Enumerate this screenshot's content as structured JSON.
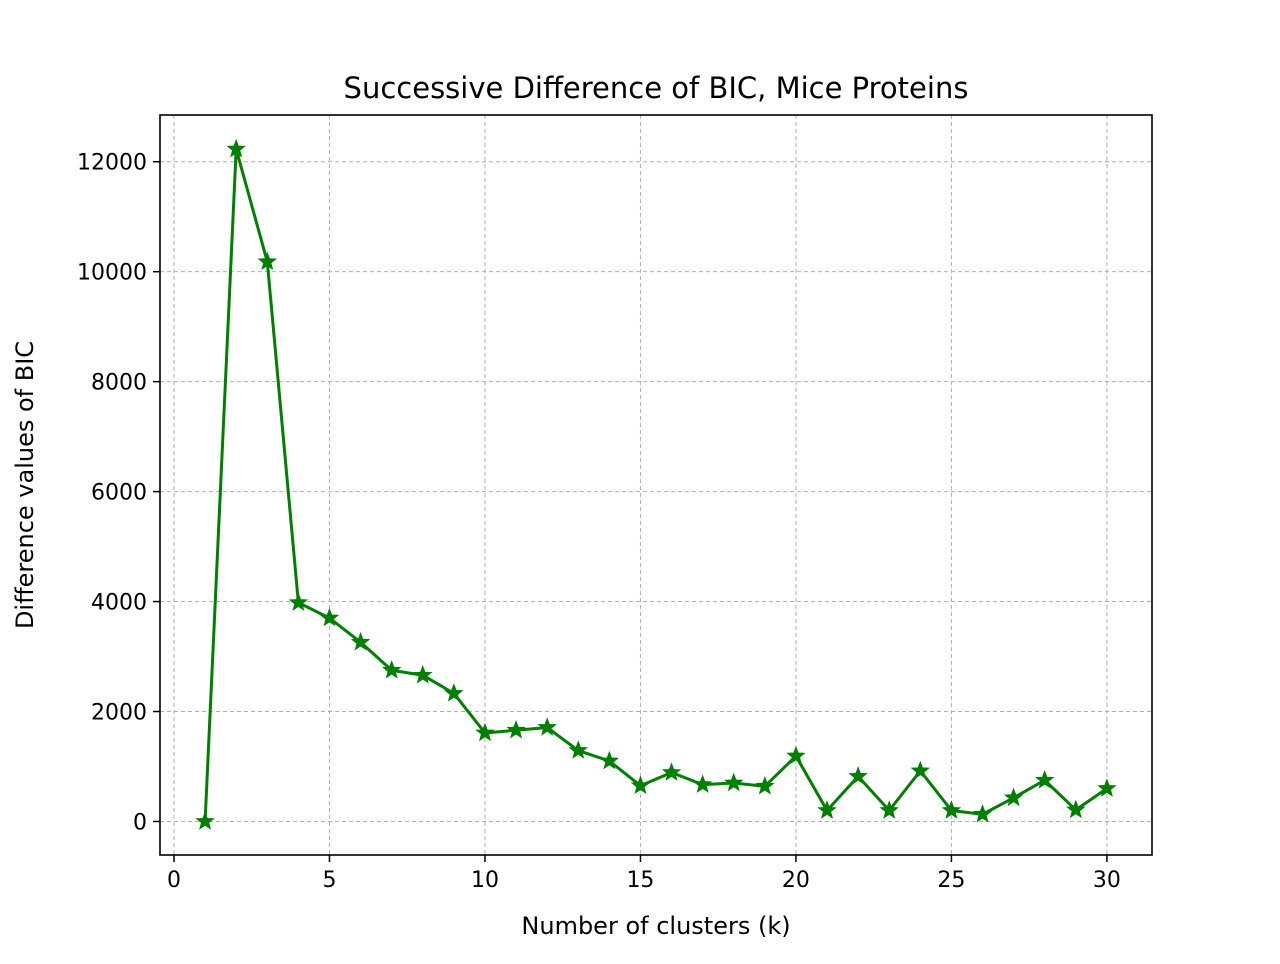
{
  "chart_data": {
    "type": "line",
    "title": "Successive Difference of BIC, Mice Proteins",
    "xlabel": "Number of clusters (k)",
    "ylabel": "Difference values of BIC",
    "xlim": [
      -0.45,
      31.45
    ],
    "ylim": [
      -610,
      12850
    ],
    "xticks": [
      0,
      5,
      10,
      15,
      20,
      25,
      30
    ],
    "yticks": [
      0,
      2000,
      4000,
      6000,
      8000,
      10000,
      12000
    ],
    "grid": true,
    "marker": "star",
    "colors": {
      "line": "#008000",
      "grid": "#b0b0b0"
    },
    "series": [
      {
        "x": [
          1,
          2,
          3,
          4,
          5,
          6,
          7,
          8,
          9,
          10,
          11,
          12,
          13,
          14,
          15,
          16,
          17,
          18,
          19,
          20,
          21,
          22,
          23,
          24,
          25,
          26,
          27,
          28,
          29,
          30
        ],
        "values": [
          0,
          12230,
          10180,
          3980,
          3700,
          3260,
          2750,
          2660,
          2330,
          1610,
          1660,
          1710,
          1290,
          1100,
          650,
          890,
          670,
          700,
          640,
          1190,
          200,
          820,
          200,
          920,
          200,
          130,
          430,
          750,
          210,
          600
        ]
      }
    ]
  }
}
